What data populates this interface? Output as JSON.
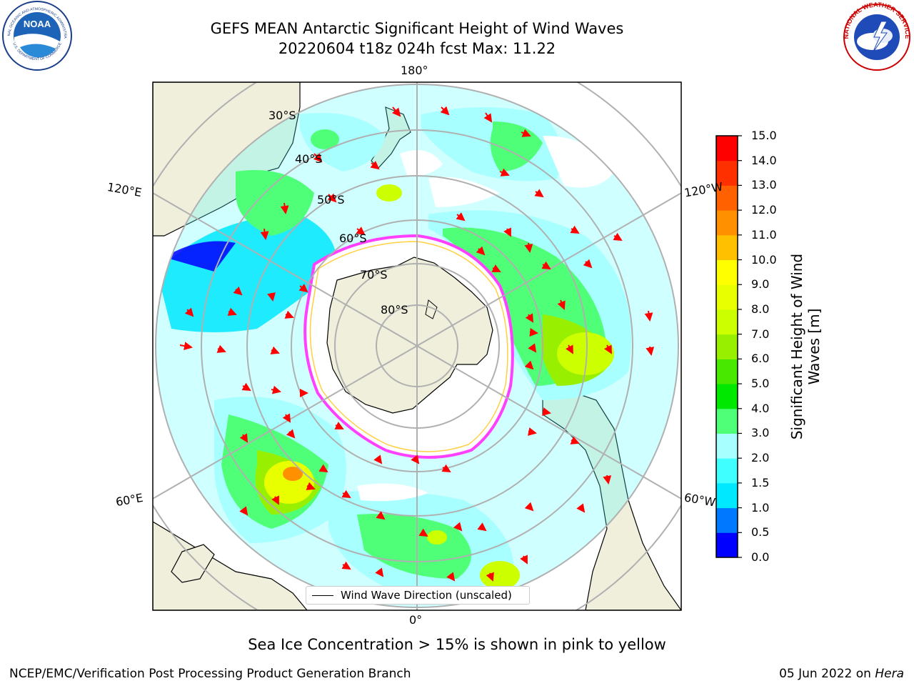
{
  "header": {
    "title_line1": "GEFS MEAN Antarctic Significant Height of Wind Waves",
    "title_line2": "20220604 t18z 024h fcst   Max: 11.22"
  },
  "logos": {
    "left": "noaa-logo",
    "left_text": "NOAA",
    "left_ring_text": "NATIONAL OCEANIC AND ATMOSPHERIC ADMINISTRATION",
    "left_bottom_text": "U.S. DEPARTMENT OF COMMERCE",
    "right": "nws-logo",
    "right_ring_text": "NATIONAL WEATHER SERVICE"
  },
  "map": {
    "projection": "south-polar-stereographic",
    "longitude_labels": [
      "180°",
      "120°E",
      "120°W",
      "60°E",
      "60°W",
      "0°"
    ],
    "latitude_labels": [
      "30°S",
      "40°S",
      "50°S",
      "60°S",
      "70°S",
      "80°S"
    ],
    "land_color": "#efefdc",
    "graticule_color": "#b0b0b0",
    "ice_colors": [
      "#ff40ff",
      "#ffd040"
    ],
    "vector_color": "#ff0000"
  },
  "colorbar": {
    "label": "Significant Height of Wind Waves [m]",
    "ticks": [
      "0.0",
      "0.5",
      "1.0",
      "1.5",
      "2.0",
      "3.0",
      "4.0",
      "5.0",
      "6.0",
      "7.0",
      "8.0",
      "9.0",
      "10.0",
      "11.0",
      "12.0",
      "13.0",
      "14.0",
      "15.0"
    ],
    "colors": [
      "#0000ff",
      "#0078ff",
      "#00e8ff",
      "#40ffff",
      "#a8ffff",
      "#50ff78",
      "#00e800",
      "#48e800",
      "#98f000",
      "#ccff00",
      "#e8ff00",
      "#ffff00",
      "#ffc000",
      "#ff9000",
      "#ff6000",
      "#ff3000",
      "#ff0000"
    ]
  },
  "legend": {
    "label": "Wind Wave Direction (unscaled)"
  },
  "notes": {
    "ice": "Sea Ice Concentration > 15% is shown in pink to yellow"
  },
  "footer": {
    "left": "NCEP/EMC/Verification Post Processing Product Generation Branch",
    "right_prefix": "05 Jun 2022 on ",
    "right_host": "Hera"
  }
}
